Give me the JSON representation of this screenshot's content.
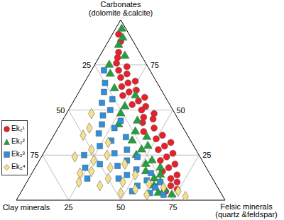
{
  "chart_data": {
    "type": "ternary",
    "components": [
      {
        "label": "Carbonates",
        "sublabel": "(dolomite &calcite)"
      },
      {
        "label": "Clay minerals"
      },
      {
        "label": "Felsic minerals",
        "sublabel": "(quartz &feldspar)"
      }
    ],
    "lim": [
      0,
      100
    ],
    "ticks": [
      25,
      50,
      75
    ],
    "grid": true,
    "legend": "lower left",
    "series": [
      {
        "name": "Ek₂¹",
        "color": "#e8202a",
        "marker": "circle",
        "values": [
          [
            92,
            5,
            3
          ],
          [
            88,
            6,
            6
          ],
          [
            82,
            10,
            8
          ],
          [
            79,
            12,
            9
          ],
          [
            76,
            14,
            10
          ],
          [
            74,
            10,
            16
          ],
          [
            72,
            15,
            13
          ],
          [
            70,
            12,
            18
          ],
          [
            68,
            16,
            16
          ],
          [
            66,
            10,
            24
          ],
          [
            65,
            14,
            21
          ],
          [
            63,
            18,
            19
          ],
          [
            61,
            12,
            27
          ],
          [
            60,
            16,
            24
          ],
          [
            58,
            20,
            22
          ],
          [
            57,
            10,
            33
          ],
          [
            55,
            14,
            31
          ],
          [
            53,
            18,
            29
          ],
          [
            52,
            12,
            36
          ],
          [
            50,
            15,
            35
          ],
          [
            48,
            10,
            42
          ],
          [
            46,
            16,
            38
          ],
          [
            45,
            12,
            43
          ],
          [
            43,
            18,
            39
          ],
          [
            40,
            14,
            46
          ],
          [
            38,
            20,
            42
          ],
          [
            36,
            12,
            52
          ],
          [
            34,
            16,
            50
          ],
          [
            32,
            10,
            58
          ],
          [
            30,
            14,
            56
          ],
          [
            28,
            18,
            54
          ],
          [
            26,
            12,
            62
          ],
          [
            24,
            16,
            60
          ],
          [
            22,
            20,
            58
          ],
          [
            20,
            14,
            66
          ],
          [
            18,
            18,
            64
          ],
          [
            16,
            22,
            62
          ],
          [
            14,
            16,
            70
          ],
          [
            12,
            20,
            68
          ],
          [
            10,
            18,
            72
          ],
          [
            8,
            22,
            70
          ],
          [
            6,
            20,
            74
          ],
          [
            5,
            26,
            69
          ]
        ]
      },
      {
        "name": "Ek₂²",
        "color": "#1fa23c",
        "marker": "triangle",
        "values": [
          [
            95,
            2,
            3
          ],
          [
            90,
            4,
            6
          ],
          [
            86,
            8,
            6
          ],
          [
            80,
            8,
            12
          ],
          [
            75,
            18,
            7
          ],
          [
            70,
            20,
            10
          ],
          [
            62,
            22,
            16
          ],
          [
            58,
            14,
            28
          ],
          [
            52,
            22,
            26
          ],
          [
            48,
            26,
            26
          ],
          [
            44,
            20,
            36
          ],
          [
            42,
            30,
            28
          ],
          [
            38,
            24,
            38
          ],
          [
            35,
            20,
            45
          ],
          [
            33,
            28,
            39
          ],
          [
            30,
            22,
            48
          ],
          [
            28,
            26,
            46
          ],
          [
            25,
            30,
            45
          ],
          [
            22,
            24,
            54
          ],
          [
            20,
            28,
            52
          ],
          [
            18,
            22,
            60
          ],
          [
            16,
            30,
            54
          ],
          [
            14,
            24,
            62
          ],
          [
            12,
            28,
            60
          ],
          [
            10,
            26,
            64
          ],
          [
            8,
            30,
            62
          ],
          [
            6,
            26,
            68
          ],
          [
            4,
            30,
            66
          ],
          [
            3,
            24,
            73
          ]
        ]
      },
      {
        "name": "Ek₂³",
        "color": "#2e90dc",
        "marker": "square",
        "values": [
          [
            72,
            22,
            6
          ],
          [
            65,
            25,
            10
          ],
          [
            60,
            28,
            12
          ],
          [
            56,
            26,
            18
          ],
          [
            54,
            32,
            14
          ],
          [
            50,
            30,
            20
          ],
          [
            47,
            35,
            18
          ],
          [
            44,
            28,
            28
          ],
          [
            42,
            38,
            20
          ],
          [
            40,
            33,
            27
          ],
          [
            37,
            42,
            21
          ],
          [
            35,
            30,
            35
          ],
          [
            33,
            38,
            29
          ],
          [
            30,
            45,
            25
          ],
          [
            28,
            33,
            39
          ],
          [
            26,
            40,
            34
          ],
          [
            24,
            30,
            46
          ],
          [
            22,
            36,
            42
          ],
          [
            20,
            50,
            30
          ],
          [
            19,
            42,
            39
          ],
          [
            17,
            34,
            49
          ],
          [
            15,
            28,
            57
          ],
          [
            14,
            40,
            46
          ],
          [
            12,
            45,
            43
          ],
          [
            11,
            32,
            57
          ],
          [
            10,
            26,
            64
          ],
          [
            8,
            38,
            54
          ],
          [
            7,
            30,
            63
          ],
          [
            5,
            42,
            53
          ],
          [
            4,
            34,
            62
          ],
          [
            3,
            28,
            69
          ],
          [
            18,
            58,
            24
          ],
          [
            12,
            60,
            28
          ],
          [
            25,
            55,
            20
          ]
        ]
      },
      {
        "name": "Ek₂⁴",
        "color": "#f5e08c",
        "marker": "diamond",
        "values": [
          [
            48,
            40,
            12
          ],
          [
            40,
            45,
            15
          ],
          [
            36,
            50,
            14
          ],
          [
            32,
            40,
            28
          ],
          [
            28,
            50,
            22
          ],
          [
            25,
            44,
            31
          ],
          [
            22,
            52,
            26
          ],
          [
            20,
            38,
            42
          ],
          [
            18,
            46,
            36
          ],
          [
            16,
            56,
            28
          ],
          [
            14,
            36,
            50
          ],
          [
            12,
            50,
            38
          ],
          [
            10,
            44,
            46
          ],
          [
            9,
            32,
            59
          ],
          [
            8,
            56,
            36
          ],
          [
            7,
            26,
            67
          ],
          [
            6,
            40,
            54
          ],
          [
            5,
            20,
            75
          ],
          [
            4,
            48,
            48
          ],
          [
            3,
            36,
            61
          ],
          [
            2,
            18,
            80
          ],
          [
            15,
            62,
            23
          ],
          [
            10,
            65,
            25
          ],
          [
            24,
            60,
            16
          ]
        ]
      }
    ]
  }
}
